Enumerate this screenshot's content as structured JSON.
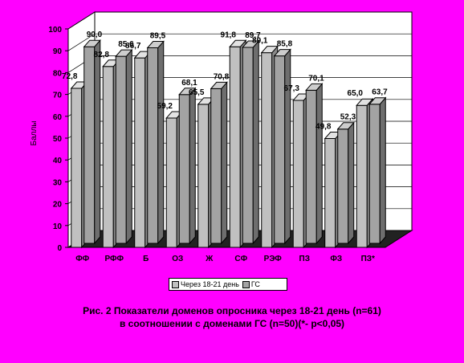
{
  "chart_data": {
    "type": "bar",
    "ylabel": "Баллы",
    "ylim": [
      0,
      100
    ],
    "yticks": [
      0,
      10,
      20,
      30,
      40,
      50,
      60,
      70,
      80,
      90,
      100
    ],
    "categories": [
      "ФФ",
      "РФФ",
      "Б",
      "ОЗ",
      "Ж",
      "СФ",
      "РЭФ",
      "ПЗ",
      "ФЗ",
      "ПЗ*"
    ],
    "series": [
      {
        "name": "Через 18-21 день",
        "values": [
          72.8,
          82.8,
          86.7,
          59.2,
          65.5,
          91.8,
          89.1,
          67.3,
          49.8,
          65.0
        ],
        "labels": [
          "72,8",
          "82,8",
          "86,7",
          "59,2",
          "65,5",
          "91,8",
          "89,1",
          "67,3",
          "49,8",
          "65,0"
        ]
      },
      {
        "name": "ГС",
        "values": [
          90.0,
          85.6,
          89.5,
          68.1,
          70.8,
          89.7,
          85.8,
          70.1,
          52.3,
          63.7
        ],
        "labels": [
          "90,0",
          "85,6",
          "89,5",
          "68,1",
          "70,8",
          "89,7",
          "85,8",
          "70,1",
          "52,3",
          "63,7"
        ]
      }
    ],
    "colors": {
      "background": "#ff00ff",
      "plot_wall": "#ffffff",
      "floor": "#222222",
      "series1_front": "#c0c0c0",
      "series1_top": "#e2e2e2",
      "series1_side": "#8a8a8a",
      "series2_front": "#a3a3a3",
      "series2_top": "#cdcdcd",
      "series2_side": "#6e6e6e"
    },
    "grid": true,
    "legend_position": "bottom"
  },
  "caption": {
    "line1": "Рис. 2 Показатели доменов опросника через 18-21 день (n=61)",
    "line2": "в соотношении с доменами ГС (n=50)(*- р<0,05)"
  }
}
